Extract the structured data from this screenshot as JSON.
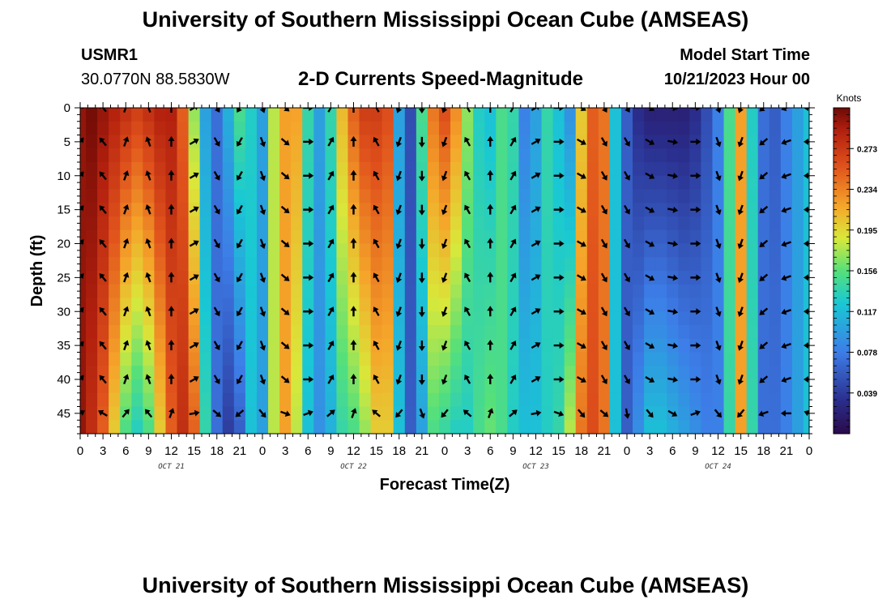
{
  "header": {
    "title": "University of Southern Mississippi Ocean Cube (AMSEAS)",
    "station": "USMR1",
    "coords": "30.0770N  88.5830W",
    "subtitle": "2-D Currents Speed-Magnitude",
    "model_start_label": "Model Start Time",
    "model_start_value": "10/21/2023 Hour 00"
  },
  "footer": {
    "title": "University of Southern Mississippi Ocean Cube (AMSEAS)"
  },
  "chart_data": {
    "type": "heatmap",
    "title": "2-D Currents Speed-Magnitude",
    "xlabel": "Forecast Time(Z)",
    "ylabel": "Depth (ft)",
    "x_ticks": [
      "0",
      "3",
      "6",
      "9",
      "12",
      "15",
      "18",
      "21",
      "0",
      "3",
      "6",
      "9",
      "12",
      "15",
      "18",
      "21",
      "0",
      "3",
      "6",
      "9",
      "12",
      "15",
      "18",
      "21",
      "0",
      "3",
      "6",
      "9",
      "12",
      "15",
      "18",
      "21",
      "0"
    ],
    "day_labels": [
      "OCT 21",
      "OCT 22",
      "OCT 23",
      "OCT 24"
    ],
    "xlim_hours": [
      0,
      96
    ],
    "y_ticks": [
      0,
      5,
      10,
      15,
      20,
      25,
      30,
      35,
      40,
      45
    ],
    "ylim": [
      0,
      48
    ],
    "colorbar": {
      "unit": "Knots",
      "ticks": [
        "0.273",
        "0.234",
        "0.195",
        "0.156",
        "0.117",
        "0.078",
        "0.039"
      ],
      "range": [
        0,
        0.312
      ]
    },
    "speed_profile": {
      "hours": [
        0,
        1.5,
        3,
        4.5,
        6,
        7.5,
        9,
        10.5,
        12,
        13.5,
        15,
        16.5,
        18,
        19.5,
        21,
        22.5,
        24,
        25.5,
        27,
        28.5,
        30,
        31.5,
        33,
        34.5,
        36,
        37.5,
        39,
        40.5,
        42,
        43.5,
        45,
        46.5,
        48,
        49.5,
        51,
        52.5,
        54,
        55.5,
        57,
        58.5,
        60,
        61.5,
        63,
        64.5,
        66,
        67.5,
        69,
        70.5,
        72,
        73.5,
        75,
        76.5,
        78,
        79.5,
        81,
        82.5,
        84,
        85.5,
        87,
        88.5,
        90,
        91.5,
        93,
        94.5,
        96
      ],
      "surface_knots": [
        0.3,
        0.31,
        0.3,
        0.29,
        0.28,
        0.27,
        0.28,
        0.29,
        0.29,
        0.25,
        0.17,
        0.1,
        0.07,
        0.11,
        0.15,
        0.13,
        0.1,
        0.18,
        0.22,
        0.22,
        0.14,
        0.1,
        0.14,
        0.21,
        0.25,
        0.27,
        0.27,
        0.26,
        0.1,
        0.05,
        0.15,
        0.24,
        0.26,
        0.23,
        0.17,
        0.13,
        0.12,
        0.15,
        0.14,
        0.08,
        0.1,
        0.14,
        0.12,
        0.09,
        0.2,
        0.25,
        0.24,
        0.12,
        0.06,
        0.03,
        0.02,
        0.02,
        0.02,
        0.02,
        0.03,
        0.05,
        0.08,
        0.15,
        0.22,
        0.13,
        0.07,
        0.06,
        0.08,
        0.1,
        0.12
      ],
      "bottom_knots": [
        0.3,
        0.28,
        0.25,
        0.2,
        0.15,
        0.13,
        0.15,
        0.2,
        0.25,
        0.28,
        0.25,
        0.14,
        0.07,
        0.04,
        0.06,
        0.12,
        0.1,
        0.18,
        0.22,
        0.18,
        0.12,
        0.09,
        0.11,
        0.14,
        0.15,
        0.17,
        0.2,
        0.2,
        0.12,
        0.06,
        0.1,
        0.15,
        0.14,
        0.13,
        0.13,
        0.15,
        0.16,
        0.15,
        0.13,
        0.12,
        0.12,
        0.13,
        0.14,
        0.18,
        0.24,
        0.26,
        0.24,
        0.12,
        0.06,
        0.09,
        0.12,
        0.12,
        0.11,
        0.1,
        0.09,
        0.08,
        0.08,
        0.14,
        0.22,
        0.14,
        0.07,
        0.07,
        0.08,
        0.1,
        0.12
      ]
    },
    "vector_depths": [
      0,
      5,
      10,
      15,
      20,
      25,
      30,
      35,
      40,
      45
    ],
    "vector_directions_deg": [
      [
        40,
        320,
        20,
        340,
        0,
        60,
        150,
        210,
        160,
        130,
        90,
        30,
        0,
        330,
        200,
        180,
        200,
        330,
        0,
        30,
        60,
        90,
        120,
        150,
        150,
        120,
        100,
        90,
        160,
        200,
        230,
        250,
        270
      ],
      [
        40,
        320,
        20,
        340,
        0,
        60,
        150,
        210,
        160,
        130,
        90,
        30,
        0,
        330,
        200,
        180,
        200,
        330,
        0,
        30,
        60,
        90,
        120,
        150,
        150,
        120,
        100,
        90,
        160,
        200,
        230,
        250,
        270
      ],
      [
        40,
        320,
        20,
        340,
        0,
        60,
        150,
        210,
        160,
        130,
        90,
        30,
        0,
        330,
        200,
        180,
        200,
        330,
        0,
        30,
        60,
        90,
        120,
        150,
        150,
        120,
        100,
        90,
        160,
        200,
        230,
        250,
        270
      ],
      [
        40,
        320,
        20,
        340,
        0,
        60,
        150,
        210,
        160,
        130,
        90,
        30,
        0,
        330,
        200,
        180,
        200,
        330,
        0,
        30,
        60,
        90,
        120,
        150,
        150,
        120,
        100,
        90,
        160,
        200,
        230,
        250,
        270
      ],
      [
        40,
        320,
        20,
        340,
        0,
        60,
        150,
        210,
        160,
        130,
        90,
        30,
        0,
        330,
        200,
        180,
        200,
        330,
        0,
        30,
        60,
        90,
        120,
        150,
        150,
        120,
        100,
        90,
        160,
        200,
        230,
        250,
        270
      ],
      [
        40,
        320,
        20,
        340,
        0,
        60,
        150,
        210,
        160,
        130,
        90,
        30,
        0,
        330,
        200,
        180,
        200,
        330,
        0,
        30,
        60,
        90,
        120,
        150,
        150,
        120,
        100,
        90,
        160,
        200,
        230,
        250,
        270
      ],
      [
        40,
        320,
        20,
        340,
        0,
        60,
        150,
        210,
        160,
        130,
        90,
        30,
        0,
        330,
        200,
        180,
        200,
        330,
        0,
        30,
        60,
        90,
        120,
        150,
        150,
        120,
        100,
        90,
        160,
        200,
        230,
        250,
        270
      ],
      [
        40,
        320,
        20,
        340,
        0,
        60,
        150,
        210,
        160,
        130,
        90,
        30,
        0,
        330,
        200,
        180,
        200,
        330,
        0,
        30,
        60,
        90,
        120,
        150,
        150,
        120,
        100,
        90,
        160,
        200,
        230,
        250,
        270
      ],
      [
        40,
        320,
        20,
        340,
        0,
        60,
        150,
        210,
        160,
        130,
        90,
        30,
        0,
        330,
        200,
        180,
        200,
        330,
        0,
        30,
        60,
        90,
        120,
        150,
        150,
        120,
        100,
        90,
        160,
        200,
        230,
        250,
        270
      ],
      [
        60,
        300,
        40,
        320,
        20,
        80,
        130,
        230,
        140,
        110,
        70,
        50,
        20,
        310,
        220,
        160,
        220,
        310,
        20,
        50,
        80,
        110,
        140,
        130,
        170,
        140,
        120,
        70,
        140,
        220,
        250,
        270,
        290
      ]
    ]
  }
}
